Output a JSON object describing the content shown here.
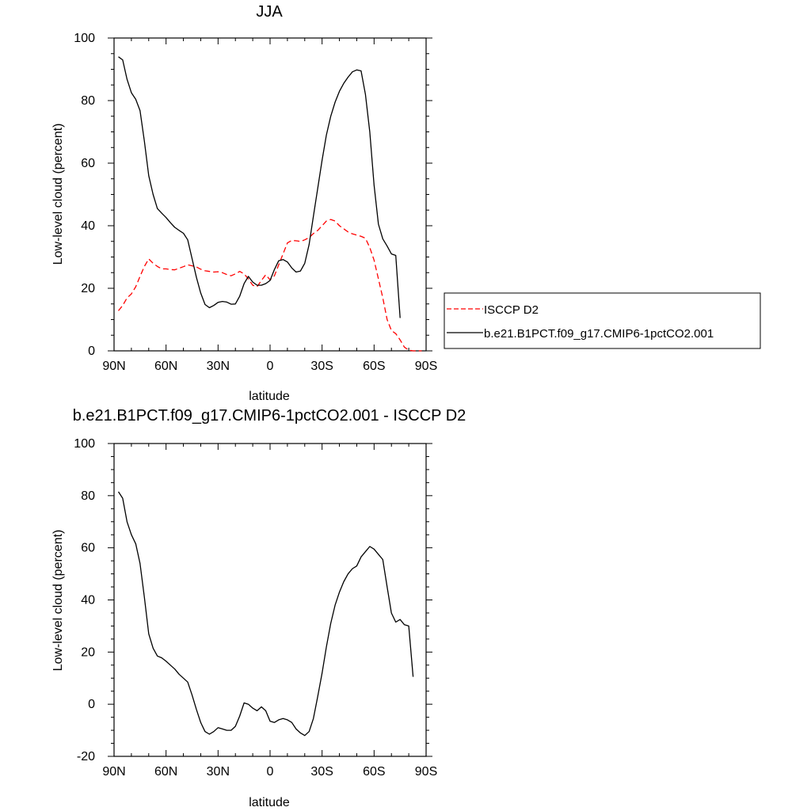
{
  "chart_data": [
    {
      "type": "line",
      "title": "JJA",
      "xlabel": "latitude",
      "ylabel": "Low-level cloud (percent)",
      "xlim": [
        -90,
        90
      ],
      "ylim": [
        0,
        100
      ],
      "x_ticks": [
        -90,
        -60,
        -30,
        0,
        30,
        60,
        90
      ],
      "x_tick_labels": [
        "90N",
        "60N",
        "30N",
        "0",
        "30S",
        "60S",
        "90S"
      ],
      "y_ticks": [
        0,
        20,
        40,
        60,
        80,
        100
      ],
      "y_tick_labels": [
        "0",
        "20",
        "40",
        "60",
        "80",
        "100"
      ],
      "legend": {
        "position": "right",
        "entries": [
          "ISCCP D2",
          "b.e21.B1PCT.f09_g17.CMIP6-1pctCO2.001"
        ]
      },
      "series": [
        {
          "name": "ISCCP D2",
          "color": "#ff0000",
          "dash": "dashed",
          "x": [
            -87.5,
            -85,
            -82.5,
            -80,
            -77.5,
            -75,
            -72.5,
            -70,
            -67.5,
            -65,
            -62.5,
            -60,
            -57.5,
            -55,
            -52.5,
            -50,
            -47.5,
            -45,
            -42.5,
            -40,
            -37.5,
            -35,
            -32.5,
            -30,
            -27.5,
            -25,
            -22.5,
            -20,
            -17.5,
            -15,
            -12.5,
            -10,
            -7.5,
            -5,
            -2.5,
            0,
            2.5,
            5,
            7.5,
            10,
            12.5,
            15,
            17.5,
            20,
            22.5,
            25,
            27.5,
            30,
            32.5,
            35,
            37.5,
            40,
            42.5,
            45,
            47.5,
            50,
            52.5,
            55,
            57.5,
            60,
            62.5,
            65,
            67.5,
            70,
            72.5,
            75,
            77.5,
            80,
            82.5,
            85,
            87.5
          ],
          "y": [
            12.8,
            14.5,
            16.9,
            18.2,
            20.5,
            23.8,
            27.0,
            29.4,
            28.0,
            27.0,
            26.2,
            26.2,
            26.0,
            25.9,
            26.4,
            26.9,
            27.5,
            27.2,
            26.8,
            26.1,
            25.6,
            25.4,
            25.2,
            25.3,
            25.0,
            24.4,
            24.0,
            24.6,
            25.4,
            24.6,
            23.0,
            21.0,
            20.5,
            22.5,
            24.3,
            22.7,
            24.0,
            27.5,
            31.0,
            34.5,
            35.3,
            35.2,
            35.0,
            35.5,
            36.2,
            37.5,
            38.5,
            40.0,
            41.5,
            42.0,
            41.5,
            40.0,
            39.0,
            38.0,
            37.4,
            37.0,
            36.6,
            36.0,
            33.0,
            29.0,
            23.0,
            17.0,
            10.0,
            6.5,
            5.5,
            3.5,
            1.2,
            0.2,
            0.0,
            0.0,
            0.0
          ]
        },
        {
          "name": "b.e21.B1PCT.f09_g17.CMIP6-1pctCO2.001",
          "color": "#000000",
          "dash": "solid",
          "x": [
            -87.5,
            -85,
            -82.5,
            -80,
            -77.5,
            -75,
            -72.5,
            -70,
            -67.5,
            -65,
            -62.5,
            -60,
            -57.5,
            -55,
            -52.5,
            -50,
            -47.5,
            -45,
            -42.5,
            -40,
            -37.5,
            -35,
            -32.5,
            -30,
            -27.5,
            -25,
            -22.5,
            -20,
            -17.5,
            -15,
            -12.5,
            -10,
            -7.5,
            -5,
            -2.5,
            0,
            2.5,
            5,
            7.5,
            10,
            12.5,
            15,
            17.5,
            20,
            22.5,
            25,
            27.5,
            30,
            32.5,
            35,
            37.5,
            40,
            42.5,
            45,
            47.5,
            50,
            52.5,
            55,
            57.5,
            60,
            62.5,
            65,
            67.5,
            70,
            72.5,
            75,
            77.5,
            80,
            82.5,
            85,
            87.5
          ],
          "y": [
            94.0,
            93.0,
            86.8,
            82.5,
            80.4,
            76.8,
            67.0,
            56.0,
            50.0,
            45.5,
            44.0,
            42.6,
            41.0,
            39.5,
            38.5,
            37.6,
            35.5,
            29.5,
            23.5,
            18.5,
            14.8,
            13.8,
            14.5,
            15.5,
            15.8,
            15.6,
            14.9,
            15.0,
            17.5,
            21.5,
            23.8,
            22.0,
            21.0,
            21.0,
            21.5,
            22.5,
            26.0,
            28.8,
            29.2,
            28.4,
            26.5,
            25.2,
            25.5,
            28.0,
            34.0,
            43.0,
            52.0,
            61.0,
            69.0,
            75.0,
            79.5,
            83.0,
            85.5,
            87.5,
            89.2,
            89.8,
            89.5,
            82.0,
            70.0,
            53.0,
            40.5,
            35.8,
            33.5,
            31.0,
            30.5,
            10.5,
            null,
            null,
            null,
            null,
            null
          ]
        }
      ]
    },
    {
      "type": "line",
      "title": "b.e21.B1PCT.f09_g17.CMIP6-1pctCO2.001 - ISCCP D2",
      "xlabel": "latitude",
      "ylabel": "Low-level cloud (percent)",
      "xlim": [
        -90,
        90
      ],
      "ylim": [
        -20,
        100
      ],
      "x_ticks": [
        -90,
        -60,
        -30,
        0,
        30,
        60,
        90
      ],
      "x_tick_labels": [
        "90N",
        "60N",
        "30N",
        "0",
        "30S",
        "60S",
        "90S"
      ],
      "y_ticks": [
        -20,
        0,
        20,
        40,
        60,
        80,
        100
      ],
      "y_tick_labels": [
        "-20",
        "0",
        "20",
        "40",
        "60",
        "80",
        "100"
      ],
      "series": [
        {
          "color": "#000000",
          "dash": "solid",
          "x": [
            -87.5,
            -85,
            -82.5,
            -80,
            -77.5,
            -75,
            -72.5,
            -70,
            -67.5,
            -65,
            -62.5,
            -60,
            -57.5,
            -55,
            -52.5,
            -50,
            -47.5,
            -45,
            -42.5,
            -40,
            -37.5,
            -35,
            -32.5,
            -30,
            -27.5,
            -25,
            -22.5,
            -20,
            -17.5,
            -15,
            -12.5,
            -10,
            -7.5,
            -5,
            -2.5,
            0,
            2.5,
            5,
            7.5,
            10,
            12.5,
            15,
            17.5,
            20,
            22.5,
            25,
            27.5,
            30,
            32.5,
            35,
            37.5,
            40,
            42.5,
            45,
            47.5,
            50,
            52.5,
            55,
            57.5,
            60,
            62.5,
            65,
            67.5,
            70,
            72.5,
            75,
            77.5,
            80,
            82.5,
            85,
            87.5
          ],
          "y": [
            81.5,
            79.0,
            70.0,
            65.0,
            61.5,
            54.0,
            41.0,
            27.0,
            21.5,
            18.5,
            17.8,
            16.5,
            15.0,
            13.5,
            11.5,
            10.0,
            8.5,
            3.5,
            -2.0,
            -7.0,
            -10.5,
            -11.5,
            -10.5,
            -9.0,
            -9.5,
            -10.0,
            -10.0,
            -8.5,
            -4.5,
            0.5,
            0.0,
            -1.5,
            -2.5,
            -1.0,
            -2.5,
            -6.5,
            -7.0,
            -6.0,
            -5.5,
            -6.0,
            -7.0,
            -9.5,
            -11.0,
            -12.0,
            -10.5,
            -5.5,
            3.0,
            12.0,
            22.0,
            31.0,
            38.0,
            43.0,
            47.0,
            50.0,
            52.0,
            53.0,
            56.5,
            58.5,
            60.5,
            59.5,
            57.5,
            55.5,
            45.0,
            35.0,
            31.5,
            32.5,
            30.5,
            30.0,
            10.5,
            null,
            null
          ]
        }
      ]
    }
  ]
}
